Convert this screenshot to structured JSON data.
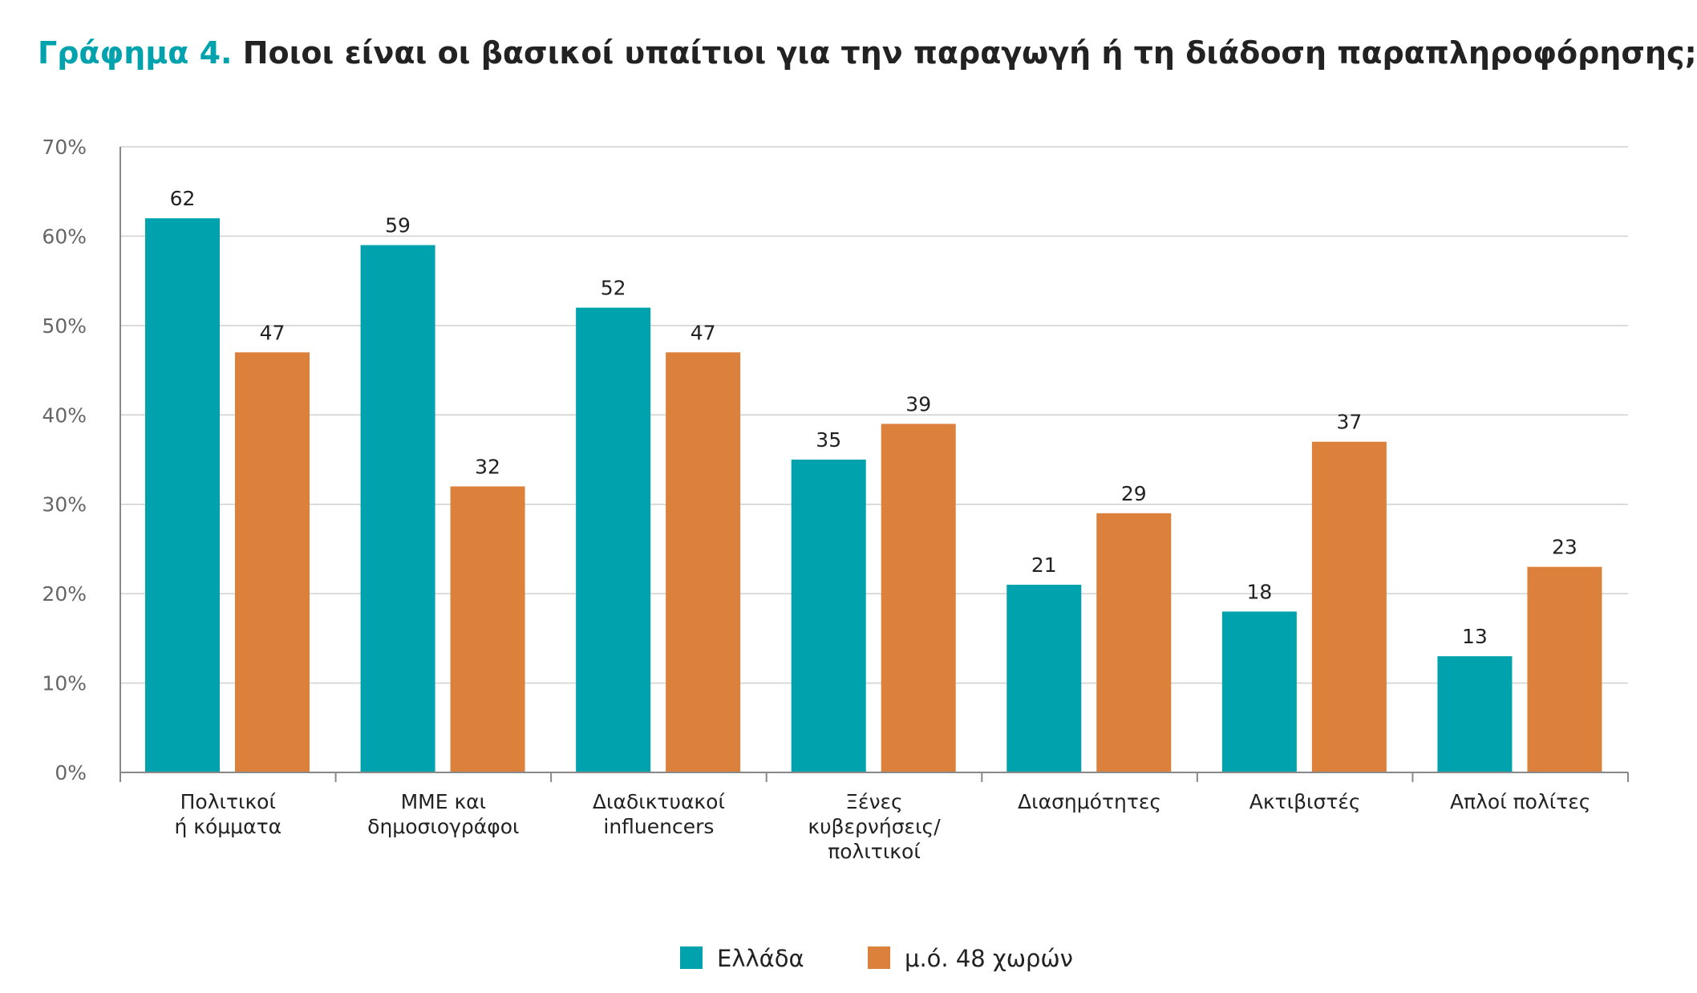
{
  "title": {
    "number": "Γράφημα 4.",
    "text": "Ποιοι είναι οι βασικοί υπαίτιοι για την παραγωγή ή τη διάδοση παραπληροφόρησης;"
  },
  "chart_data": {
    "type": "bar",
    "title": "Γράφημα 4. Ποιοι είναι οι βασικοί υπαίτιοι για την παραγωγή ή τη διάδοση παραπληροφόρησης;",
    "categories": [
      [
        "Πολιτικοί",
        "ή κόμματα"
      ],
      [
        "ΜΜΕ και",
        "δημοσιογράφοι"
      ],
      [
        "Διαδικτυακοί",
        "influencers"
      ],
      [
        "Ξένες",
        "κυβερνήσεις/",
        "πολιτικοί"
      ],
      [
        "Διασημότητες"
      ],
      [
        "Ακτιβιστές"
      ],
      [
        "Απλοί πολίτες"
      ]
    ],
    "series": [
      {
        "name": "Ελλάδα",
        "color": "#00a3ad",
        "values": [
          62,
          59,
          52,
          35,
          21,
          18,
          13
        ]
      },
      {
        "name": "μ.ό. 48 χωρών",
        "color": "#db813b",
        "values": [
          47,
          32,
          47,
          39,
          29,
          37,
          23
        ]
      }
    ],
    "ylim": [
      0,
      70
    ],
    "yticks": [
      0,
      10,
      20,
      30,
      40,
      50,
      60,
      70
    ],
    "ytick_suffix": "%",
    "grid": true,
    "legend": "bottom-center"
  }
}
